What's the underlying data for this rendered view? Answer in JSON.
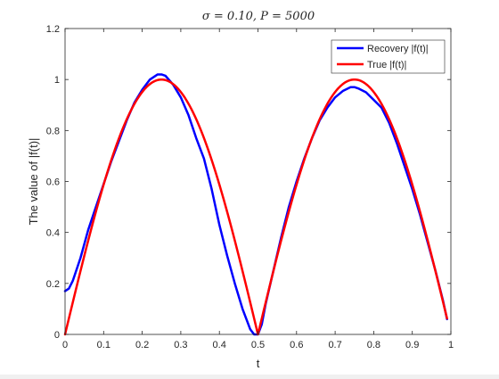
{
  "figure": {
    "background": "#ffffff"
  },
  "chart_data": {
    "type": "line",
    "title": "σ = 0.10,    P = 5000",
    "xlabel": "t",
    "ylabel": "The value of |f(t)|",
    "xlim": [
      0,
      1
    ],
    "ylim": [
      0,
      1.2
    ],
    "xticks": [
      "0",
      "0.1",
      "0.2",
      "0.3",
      "0.4",
      "0.5",
      "0.6",
      "0.7",
      "0.8",
      "0.9",
      "1"
    ],
    "yticks": [
      "0",
      "0.2",
      "0.4",
      "0.6",
      "0.8",
      "1",
      "1.2"
    ],
    "grid": false,
    "legend_position": "top-right",
    "series": [
      {
        "name": "Recovery |f(t)|",
        "color": "#0000ff",
        "points": [
          [
            0.0,
            0.17
          ],
          [
            0.01,
            0.18
          ],
          [
            0.02,
            0.21
          ],
          [
            0.04,
            0.3
          ],
          [
            0.06,
            0.41
          ],
          [
            0.08,
            0.5
          ],
          [
            0.1,
            0.59
          ],
          [
            0.12,
            0.68
          ],
          [
            0.14,
            0.76
          ],
          [
            0.16,
            0.84
          ],
          [
            0.18,
            0.91
          ],
          [
            0.2,
            0.96
          ],
          [
            0.22,
            1.0
          ],
          [
            0.24,
            1.02
          ],
          [
            0.25,
            1.02
          ],
          [
            0.26,
            1.015
          ],
          [
            0.28,
            0.98
          ],
          [
            0.3,
            0.93
          ],
          [
            0.32,
            0.86
          ],
          [
            0.34,
            0.77
          ],
          [
            0.36,
            0.69
          ],
          [
            0.38,
            0.57
          ],
          [
            0.4,
            0.43
          ],
          [
            0.42,
            0.31
          ],
          [
            0.44,
            0.2
          ],
          [
            0.46,
            0.1
          ],
          [
            0.48,
            0.02
          ],
          [
            0.49,
            0.0
          ],
          [
            0.5,
            0.0
          ],
          [
            0.51,
            0.04
          ],
          [
            0.52,
            0.12
          ],
          [
            0.54,
            0.25
          ],
          [
            0.56,
            0.38
          ],
          [
            0.58,
            0.5
          ],
          [
            0.6,
            0.6
          ],
          [
            0.62,
            0.69
          ],
          [
            0.64,
            0.77
          ],
          [
            0.66,
            0.84
          ],
          [
            0.68,
            0.89
          ],
          [
            0.7,
            0.93
          ],
          [
            0.72,
            0.955
          ],
          [
            0.74,
            0.97
          ],
          [
            0.75,
            0.97
          ],
          [
            0.76,
            0.965
          ],
          [
            0.78,
            0.95
          ],
          [
            0.8,
            0.92
          ],
          [
            0.82,
            0.89
          ],
          [
            0.84,
            0.83
          ],
          [
            0.86,
            0.75
          ],
          [
            0.88,
            0.66
          ],
          [
            0.9,
            0.57
          ],
          [
            0.92,
            0.47
          ],
          [
            0.94,
            0.36
          ],
          [
            0.96,
            0.25
          ],
          [
            0.98,
            0.13
          ],
          [
            0.99,
            0.06
          ]
        ]
      },
      {
        "name": "True |f(t)|",
        "color": "#ff0000",
        "function": "abs(sin(2*pi*t))",
        "points": [
          [
            0.0,
            0.0
          ],
          [
            0.02,
            0.125
          ],
          [
            0.04,
            0.249
          ],
          [
            0.06,
            0.368
          ],
          [
            0.08,
            0.482
          ],
          [
            0.1,
            0.588
          ],
          [
            0.12,
            0.685
          ],
          [
            0.14,
            0.771
          ],
          [
            0.16,
            0.844
          ],
          [
            0.18,
            0.905
          ],
          [
            0.2,
            0.951
          ],
          [
            0.22,
            0.982
          ],
          [
            0.24,
            0.998
          ],
          [
            0.25,
            1.0
          ],
          [
            0.26,
            0.998
          ],
          [
            0.28,
            0.982
          ],
          [
            0.3,
            0.951
          ],
          [
            0.32,
            0.905
          ],
          [
            0.34,
            0.844
          ],
          [
            0.36,
            0.771
          ],
          [
            0.38,
            0.685
          ],
          [
            0.4,
            0.588
          ],
          [
            0.42,
            0.482
          ],
          [
            0.44,
            0.368
          ],
          [
            0.46,
            0.249
          ],
          [
            0.48,
            0.125
          ],
          [
            0.5,
            0.0
          ],
          [
            0.52,
            0.125
          ],
          [
            0.54,
            0.249
          ],
          [
            0.56,
            0.368
          ],
          [
            0.58,
            0.482
          ],
          [
            0.6,
            0.588
          ],
          [
            0.62,
            0.685
          ],
          [
            0.64,
            0.771
          ],
          [
            0.66,
            0.844
          ],
          [
            0.68,
            0.905
          ],
          [
            0.7,
            0.951
          ],
          [
            0.72,
            0.982
          ],
          [
            0.74,
            0.998
          ],
          [
            0.75,
            1.0
          ],
          [
            0.76,
            0.998
          ],
          [
            0.78,
            0.982
          ],
          [
            0.8,
            0.951
          ],
          [
            0.82,
            0.905
          ],
          [
            0.84,
            0.844
          ],
          [
            0.86,
            0.771
          ],
          [
            0.88,
            0.685
          ],
          [
            0.9,
            0.588
          ],
          [
            0.92,
            0.482
          ],
          [
            0.94,
            0.368
          ],
          [
            0.96,
            0.249
          ],
          [
            0.98,
            0.125
          ],
          [
            0.99,
            0.063
          ]
        ]
      }
    ]
  }
}
